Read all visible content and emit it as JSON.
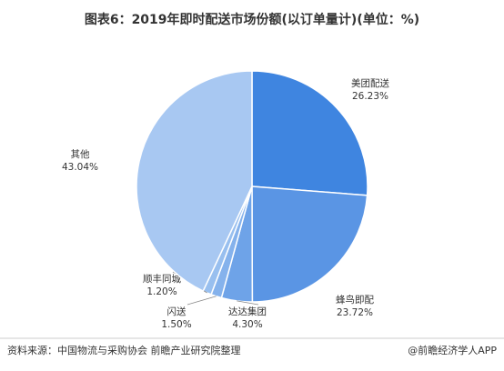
{
  "chart_data": {
    "type": "pie",
    "title": "图表6：2019年即时配送市场份额(以订单量计)(单位：%)",
    "categories": [
      "美团配送",
      "蜂鸟即配",
      "达达集团",
      "闪送",
      "顺丰同城",
      "其他"
    ],
    "values": [
      26.23,
      23.72,
      4.3,
      1.5,
      1.2,
      43.04
    ],
    "value_labels": [
      "26.23%",
      "23.72%",
      "4.30%",
      "1.50%",
      "1.20%",
      "43.04%"
    ],
    "colors": [
      "#3f85e0",
      "#5a95e4",
      "#6ea3e8",
      "#85b2ec",
      "#98bfef",
      "#a8c8f2"
    ],
    "source": "资料来源：中国物流与采购协会 前瞻产业研究院整理",
    "credit": "@前瞻经济学人APP"
  }
}
